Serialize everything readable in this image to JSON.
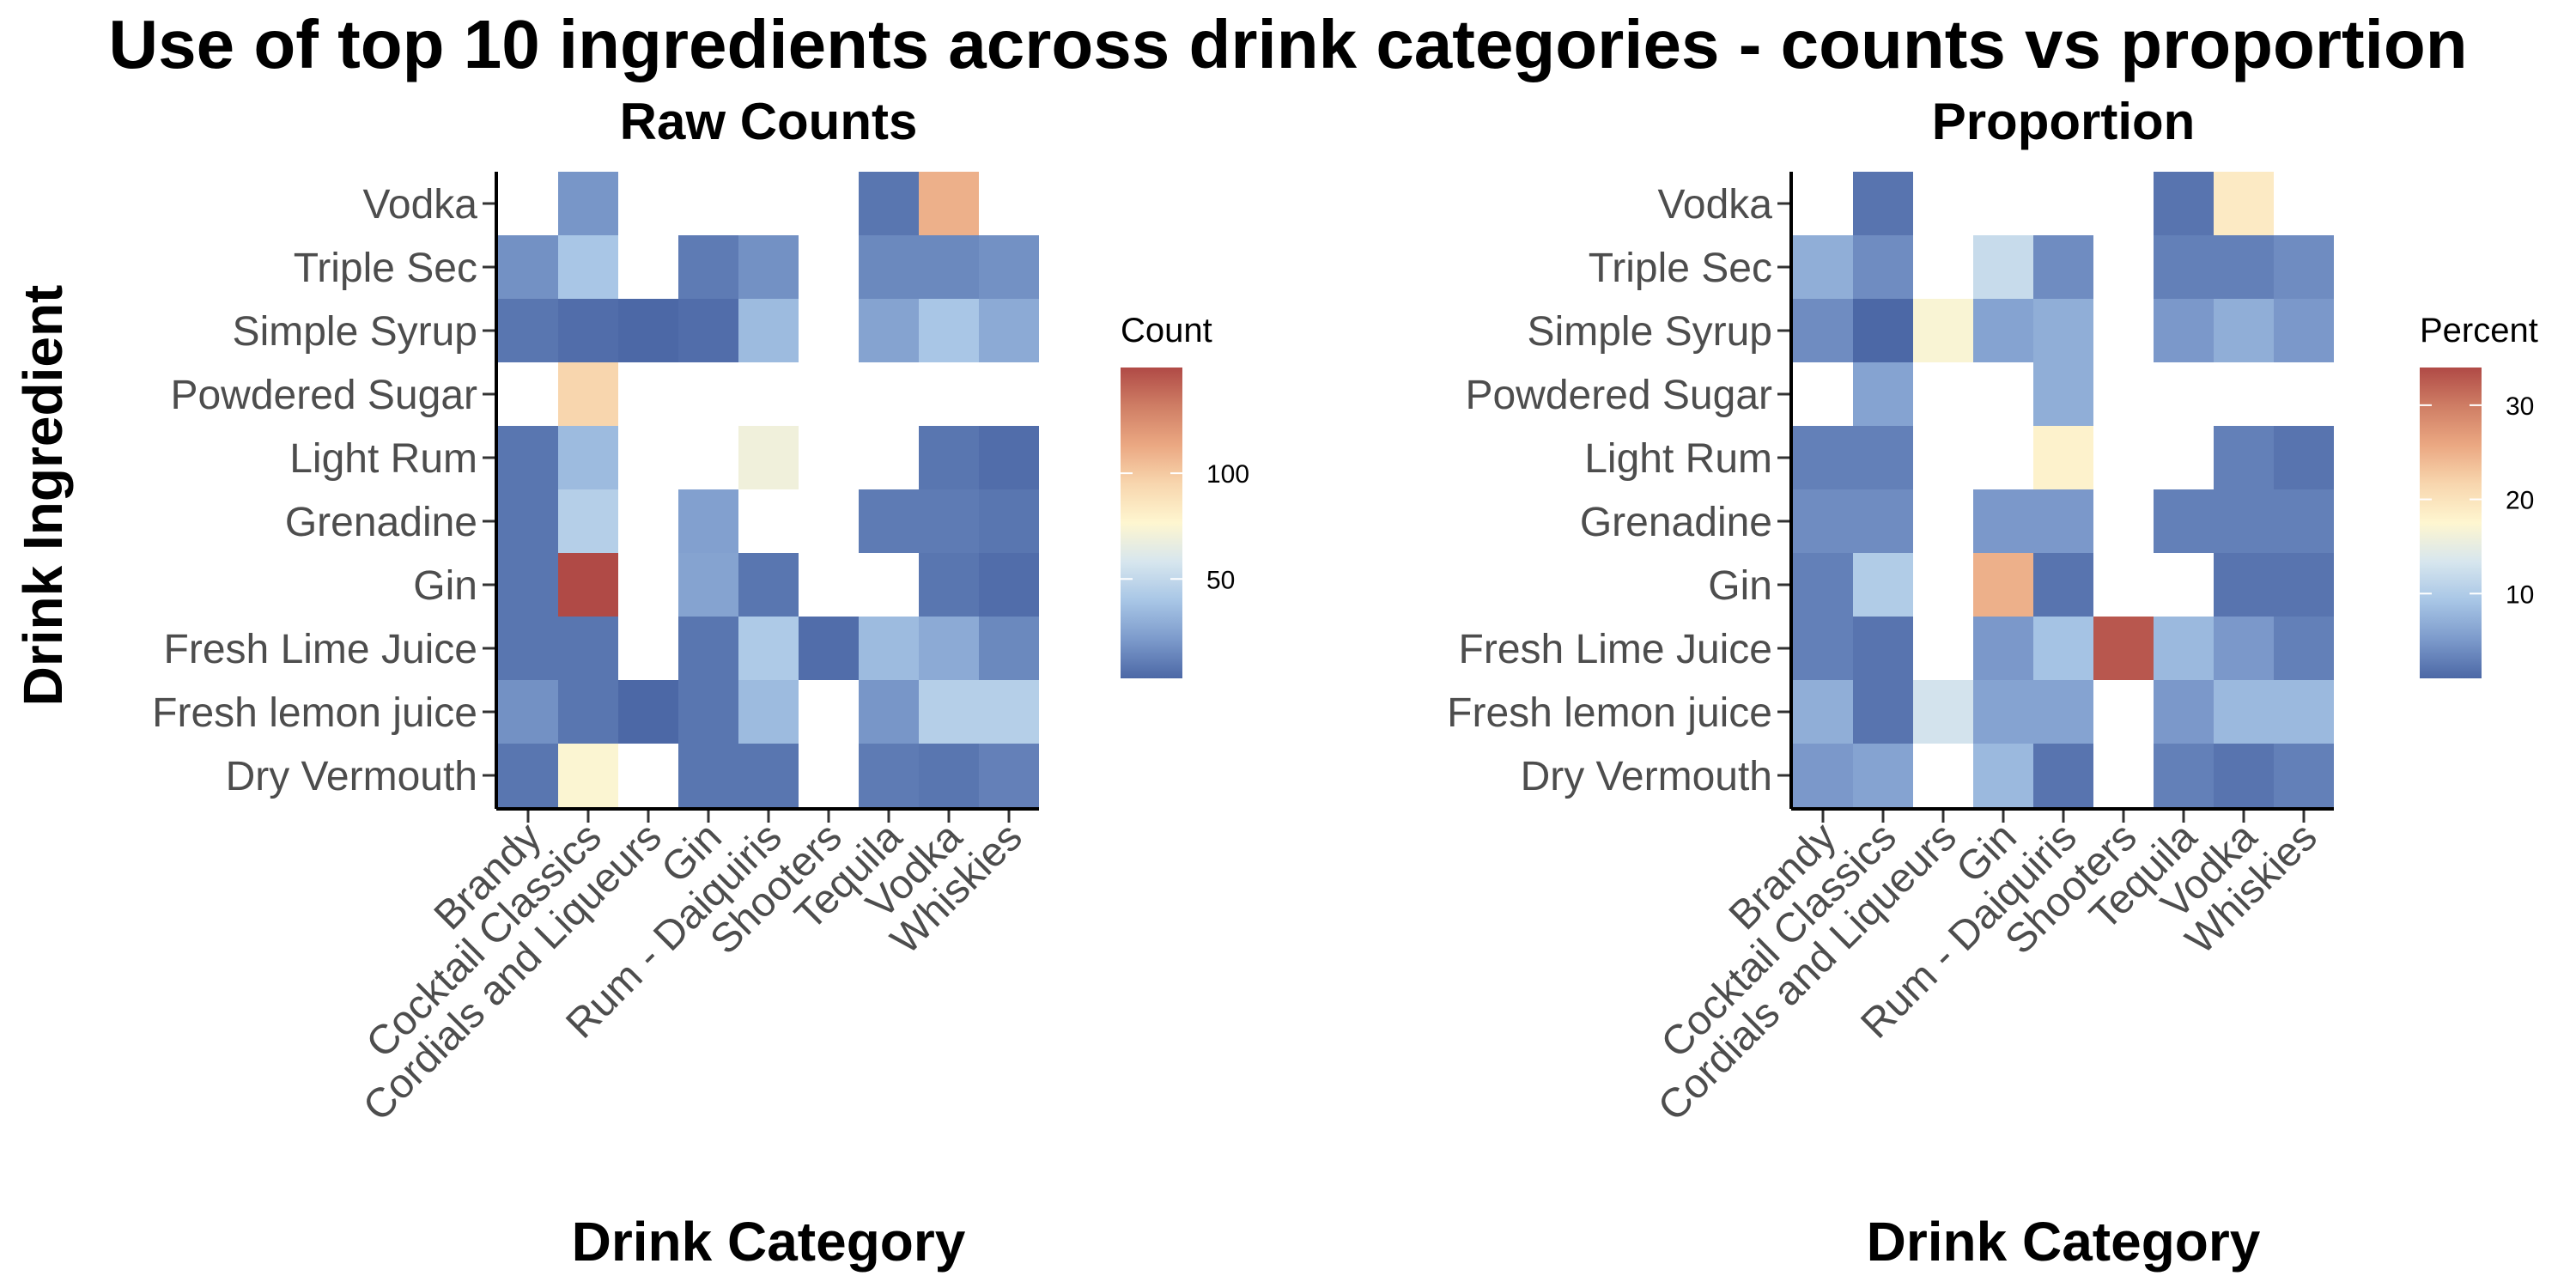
{
  "title": "Use of top 10 ingredients across drink categories - counts vs proportion",
  "ylabel": "Drink Ingredient",
  "chart_data": [
    {
      "type": "heatmap",
      "title": "Raw Counts",
      "xlabel": "Drink Category",
      "ylabel": "Drink Ingredient",
      "x_categories": [
        "Brandy",
        "Cocktail Classics",
        "Cordials and Liqueurs",
        "Gin",
        "Rum - Daiquiris",
        "Shooters",
        "Tequila",
        "Vodka",
        "Whiskies"
      ],
      "y_categories": [
        "Dry Vermouth",
        "Fresh lemon juice",
        "Fresh Lime Juice",
        "Gin",
        "Grenadine",
        "Light Rum",
        "Powdered Sugar",
        "Simple Syrup",
        "Triple Sec",
        "Vodka"
      ],
      "values": [
        [
          8,
          75,
          null,
          8,
          8,
          null,
          10,
          8,
          12
        ],
        [
          18,
          8,
          3,
          8,
          35,
          null,
          20,
          45,
          45
        ],
        [
          8,
          8,
          null,
          8,
          42,
          5,
          35,
          28,
          15
        ],
        [
          8,
          150,
          null,
          25,
          8,
          null,
          null,
          8,
          5
        ],
        [
          8,
          45,
          null,
          24,
          null,
          null,
          10,
          10,
          8
        ],
        [
          8,
          35,
          null,
          null,
          70,
          null,
          null,
          8,
          5
        ],
        [
          null,
          95,
          null,
          null,
          null,
          null,
          null,
          null,
          null
        ],
        [
          8,
          5,
          3,
          5,
          35,
          null,
          25,
          40,
          28
        ],
        [
          18,
          40,
          null,
          10,
          18,
          null,
          15,
          15,
          18
        ],
        [
          null,
          20,
          null,
          null,
          null,
          null,
          8,
          110,
          null
        ]
      ],
      "legend": {
        "title": "Count",
        "ticks": [
          50,
          100
        ],
        "range": [
          3,
          150
        ]
      }
    },
    {
      "type": "heatmap",
      "title": "Proportion",
      "xlabel": "Drink Category",
      "ylabel": "Drink Ingredient",
      "x_categories": [
        "Brandy",
        "Cocktail Classics",
        "Cordials and Liqueurs",
        "Gin",
        "Rum - Daiquiris",
        "Shooters",
        "Tequila",
        "Vodka",
        "Whiskies"
      ],
      "y_categories": [
        "Dry Vermouth",
        "Fresh lemon juice",
        "Fresh Lime Juice",
        "Gin",
        "Grenadine",
        "Light Rum",
        "Powdered Sugar",
        "Simple Syrup",
        "Triple Sec",
        "Vodka"
      ],
      "values": [
        [
          5,
          6,
          null,
          8,
          2,
          null,
          3,
          2,
          3
        ],
        [
          7,
          2,
          13,
          6,
          6,
          null,
          5,
          8,
          8
        ],
        [
          3,
          2,
          null,
          5,
          9,
          33,
          8,
          5,
          3
        ],
        [
          3,
          10,
          null,
          25,
          2,
          null,
          null,
          2,
          2
        ],
        [
          4,
          4,
          null,
          5,
          5,
          null,
          3,
          3,
          3
        ],
        [
          3,
          3,
          null,
          null,
          18,
          null,
          null,
          3,
          2
        ],
        [
          null,
          6,
          null,
          null,
          7,
          null,
          null,
          null,
          null
        ],
        [
          4,
          1,
          17,
          6,
          7,
          null,
          5,
          7,
          5
        ],
        [
          7,
          4,
          null,
          12,
          4,
          null,
          3,
          3,
          4
        ],
        [
          null,
          2,
          null,
          null,
          null,
          null,
          2,
          19,
          null
        ]
      ],
      "legend": {
        "title": "Percent",
        "ticks": [
          10,
          20,
          30
        ],
        "range": [
          1,
          34
        ]
      }
    }
  ],
  "palette": [
    "#4C68A6",
    "#7C9ACB",
    "#A8C6E6",
    "#D7E6EE",
    "#FEF6D0",
    "#F8D6AE",
    "#EBA882",
    "#CF7E65",
    "#B04A46"
  ]
}
